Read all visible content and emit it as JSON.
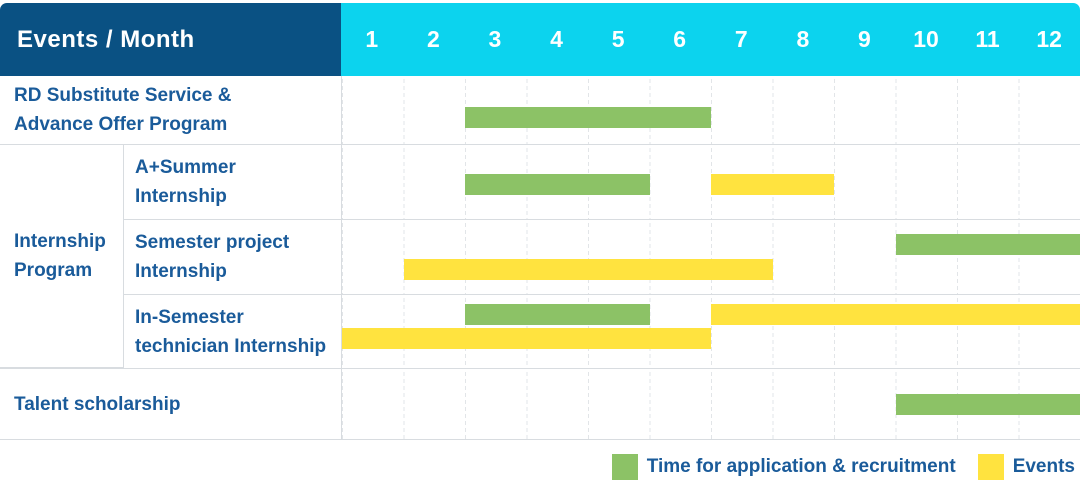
{
  "header": {
    "label": "Events / Month",
    "months": [
      "1",
      "2",
      "3",
      "4",
      "5",
      "6",
      "7",
      "8",
      "9",
      "10",
      "11",
      "12"
    ]
  },
  "labels": {
    "rd": {
      "line1": "RD Substitute Service &",
      "line2": "Advance Offer Program"
    },
    "group": {
      "line1": "Internship",
      "line2": "Program"
    },
    "summer": {
      "line1": "A+Summer",
      "line2": "Internship"
    },
    "semester": {
      "line1": "Semester project",
      "line2": "Internship"
    },
    "insemester": {
      "line1": "In-Semester",
      "line2": "technician Internship"
    },
    "talent": {
      "line1": "Talent scholarship"
    }
  },
  "colors": {
    "header_bg": "#0a5183",
    "month_bg": "#0cd3ee",
    "green": "#8cc266",
    "yellow": "#ffe33f",
    "text_blue": "#1a5b9a"
  },
  "legend": {
    "items": [
      {
        "color": "green",
        "label": "Time for application & recruitment"
      },
      {
        "color": "yellow",
        "label": "Events"
      }
    ]
  },
  "chart_data": {
    "type": "gantt",
    "title": "Events / Month",
    "x_axis": {
      "label": "Month",
      "ticks": [
        1,
        2,
        3,
        4,
        5,
        6,
        7,
        8,
        9,
        10,
        11,
        12
      ],
      "range": [
        1,
        12
      ]
    },
    "series_legend": {
      "green": "Time for application & recruitment",
      "yellow": "Events"
    },
    "rows": [
      {
        "key": "rd",
        "label": "RD Substitute Service & Advance Offer Program",
        "bars": [
          {
            "series": "Time for application & recruitment",
            "color": "green",
            "start_month": 3,
            "end_month": 6,
            "lane": "mid"
          }
        ]
      },
      {
        "key": "summer",
        "group": "Internship Program",
        "label": "A+Summer Internship",
        "bars": [
          {
            "series": "Time for application & recruitment",
            "color": "green",
            "start_month": 3,
            "end_month": 5,
            "lane": "mid"
          },
          {
            "series": "Events",
            "color": "yellow",
            "start_month": 7,
            "end_month": 8,
            "lane": "mid"
          }
        ]
      },
      {
        "key": "semester",
        "group": "Internship Program",
        "label": "Semester project Internship",
        "bars": [
          {
            "series": "Time for application & recruitment",
            "color": "green",
            "start_month": 10,
            "end_month": 12,
            "lane": "upper"
          },
          {
            "series": "Events",
            "color": "yellow",
            "start_month": 2,
            "end_month": 7,
            "lane": "lower"
          }
        ]
      },
      {
        "key": "insemester",
        "group": "Internship Program",
        "label": "In-Semester technician Internship",
        "bars": [
          {
            "series": "Time for application & recruitment",
            "color": "green",
            "start_month": 3,
            "end_month": 5,
            "lane": "upper"
          },
          {
            "series": "Events",
            "color": "yellow",
            "start_month": 7,
            "end_month": 12,
            "lane": "upper"
          },
          {
            "series": "Events",
            "color": "yellow",
            "start_month": 1,
            "end_month": 6,
            "lane": "lower"
          }
        ]
      },
      {
        "key": "talent",
        "label": "Talent scholarship",
        "bars": [
          {
            "series": "Time for application & recruitment",
            "color": "green",
            "start_month": 10,
            "end_month": 12,
            "lane": "mid"
          }
        ]
      }
    ]
  }
}
